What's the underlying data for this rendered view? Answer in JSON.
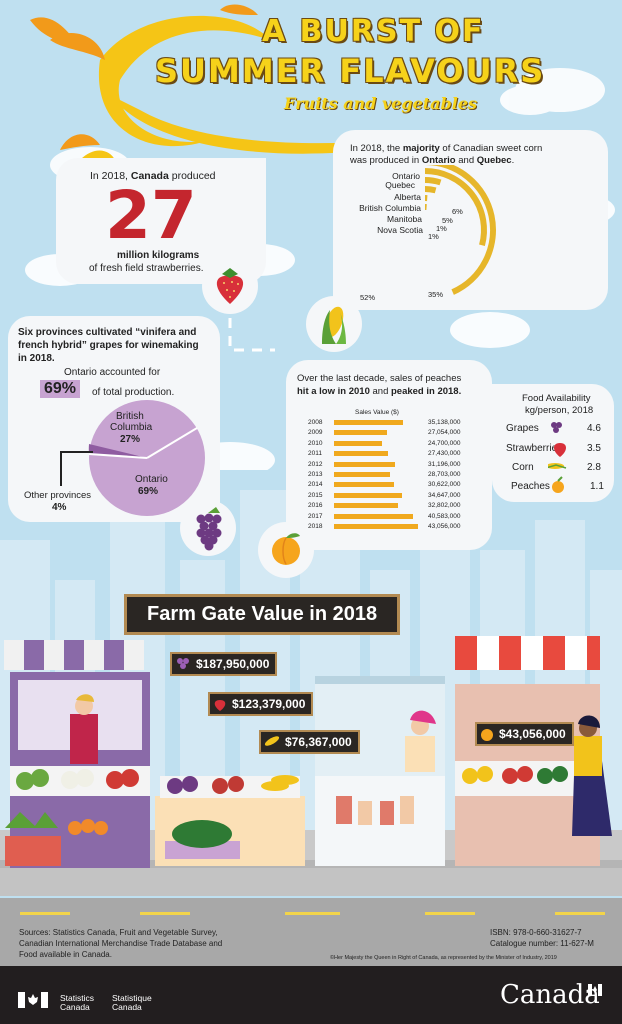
{
  "title": {
    "line1": "A BURST OF",
    "line2": "SUMMER FLAVOURS",
    "subtitle": "Fruits and vegetables"
  },
  "strawberry": {
    "intro": "In 2018, ",
    "intro_bold": "Canada",
    "intro_end": " produced",
    "number": "27",
    "unit": "million kilograms",
    "desc": "of fresh field strawberries."
  },
  "corn": {
    "heading_line1_a": "In 2018, the ",
    "heading_line1_bold": "majority",
    "heading_line1_b": " of Canadian sweet corn",
    "heading_line2_a": "was produced in ",
    "heading_line2_bold1": "Ontario",
    "heading_line2_b": " and ",
    "heading_line2_bold2": "Quebec",
    "heading_line2_c": ".",
    "labels": [
      "Ontario",
      "Quebec",
      "Alberta",
      "British Columbia",
      "Manitoba",
      "Nova Scotia"
    ],
    "percents": [
      "52%",
      "35%",
      "6%",
      "5%",
      "1%",
      "1%"
    ],
    "colors": [
      "#e6b62a",
      "#e6b62a",
      "#e6b62a",
      "#e6b62a",
      "#e6b62a",
      "#e6b62a"
    ]
  },
  "grapes": {
    "heading_line1": "Six provinces cultivated “vinifera and",
    "heading_line2": "french hybrid” grapes for winemaking",
    "heading_line3": "in 2018.",
    "sub": "Ontario accounted for",
    "pct": "69%",
    "pct_tail": "of total production.",
    "slice_labels": {
      "bc_line1": "British",
      "bc_line2": "Columbia",
      "bc_pct": "27%",
      "on": "Ontario",
      "on_pct": "69%",
      "other": "Other provinces",
      "other_pct": "4%"
    }
  },
  "peaches": {
    "heading_line1": "Over the last decade, sales of peaches",
    "heading_line2_a": "hit a low in 2010",
    "heading_line2_b": " and ",
    "heading_line2_c": "peaked in 2018.",
    "chart_title": "Sales Value ($)"
  },
  "chart_data": {
    "type": "bar",
    "title": "Sales Value ($)",
    "categories": [
      "2008",
      "2009",
      "2010",
      "2011",
      "2012",
      "2013",
      "2014",
      "2015",
      "2016",
      "2017",
      "2018"
    ],
    "values": [
      35138000,
      27054000,
      24700000,
      27430000,
      31196000,
      28703000,
      30622000,
      34647000,
      32802000,
      40583000,
      43056000
    ],
    "value_labels": [
      "35,138,000",
      "27,054,000",
      "24,700,000",
      "27,430,000",
      "31,196,000",
      "28,703,000",
      "30,622,000",
      "34,647,000",
      "32,802,000",
      "40,583,000",
      "43,056,000"
    ],
    "orientation": "horizontal",
    "bar_color": "#f0a91e"
  },
  "food": {
    "title_line1": "Food Availability",
    "title_line2": "kg/person, 2018",
    "items": [
      {
        "name": "Grapes",
        "value": "4.6"
      },
      {
        "name": "Strawberries",
        "value": "3.5"
      },
      {
        "name": "Corn",
        "value": "2.8"
      },
      {
        "name": "Peaches",
        "value": "1.1"
      }
    ]
  },
  "farm": {
    "title": "Farm Gate Value in 2018",
    "grapes": "$187,950,000",
    "strawberries": "$123,379,000",
    "corn": "$76,367,000",
    "peaches": "$43,056,000"
  },
  "footer": {
    "sources_line1": "Sources: Statistics Canada, Fruit and Vegetable Survey,",
    "sources_line2": "Canadian International Merchandise Trade Database and",
    "sources_line3": "Food available in Canada.",
    "isbn": "ISBN: 978-0-660-31627-7",
    "catalogue": "Catalogue number: 11-627-M",
    "copyright": "©Her Majesty the Queen in Right of Canada, as represented by the Minister of Industry, 2019",
    "statcan_en_1": "Statistics",
    "statcan_en_2": "Canada",
    "statcan_fr_1": "Statistique",
    "statcan_fr_2": "Canada",
    "wordmark": "Canada"
  }
}
